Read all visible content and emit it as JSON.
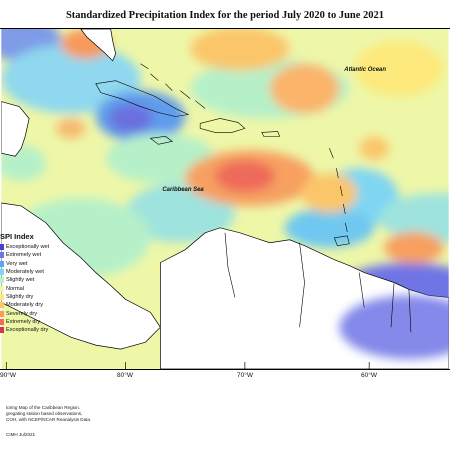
{
  "title": "Standardized Precipitation Index for the period July 2020 to June 2021",
  "map": {
    "labels": {
      "atlantic": "Atlantic Ocean",
      "caribbean": "Caribbean Sea"
    },
    "longitude_ticks": [
      "90°W",
      "80°W",
      "70°W",
      "60°W"
    ]
  },
  "legend": {
    "title": "SPI Index",
    "items": [
      {
        "label": "Exceptionally wet",
        "color": "#4b3fc7"
      },
      {
        "label": "Extremely wet",
        "color": "#6f74e6"
      },
      {
        "label": "Very wet",
        "color": "#5aa6f0"
      },
      {
        "label": "Moderately wet",
        "color": "#7fd6f2"
      },
      {
        "label": "Slightly wet",
        "color": "#b6f0c9"
      },
      {
        "label": "Normal",
        "color": "#eef7a8"
      },
      {
        "label": "Slightly dry",
        "color": "#fde97c"
      },
      {
        "label": "Moderately dry",
        "color": "#fbc66a"
      },
      {
        "label": "Severely dry",
        "color": "#f79a5c"
      },
      {
        "label": "Extremely dry",
        "color": "#f06a5a"
      },
      {
        "label": "Exceptionally dry",
        "color": "#d8344a"
      }
    ]
  },
  "footer": {
    "line1": "toring Map of the Caribbean Region.",
    "line2": "gregating station based observations,",
    "line3": "COH, with NCEP/NCAR Reanalysis Data.",
    "copyright": "CIMH Jul2021"
  }
}
